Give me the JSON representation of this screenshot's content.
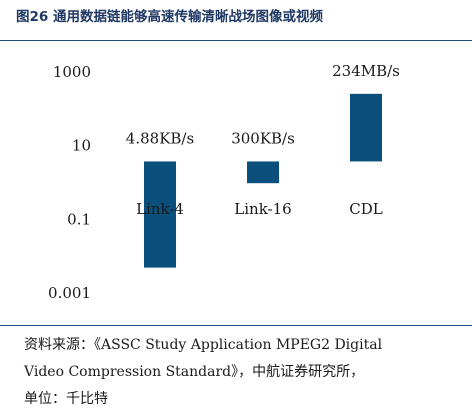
{
  "figure": {
    "title": "图26 通用数据链能够高速传输清晰战场图像或视频",
    "source_line1": "资料来源：《ASSC Study Application MPEG2 Digital",
    "source_line2": "Video Compression Standard》，中航证券研究所，",
    "unit_line": "单位：千比特"
  },
  "colors": {
    "bar": "#0b4f7c",
    "title": "#1f3864",
    "rule": "#1f4e79"
  },
  "chart_data": {
    "type": "bar",
    "title": "",
    "xlabel": "",
    "ylabel": "",
    "yscale": "log",
    "ylim": [
      0.001,
      1000
    ],
    "yticks": [
      {
        "value": 1000,
        "label": "1000"
      },
      {
        "value": 10,
        "label": "10"
      },
      {
        "value": 0.1,
        "label": "0.1"
      },
      {
        "value": 0.001,
        "label": "0.001"
      }
    ],
    "grid": false,
    "bars": [
      {
        "category": "Link-4",
        "bottom": 0.0046,
        "top": 3.5,
        "data_label": "4.88KB/s"
      },
      {
        "category": "Link-16",
        "bottom": 0.9,
        "top": 3.5,
        "data_label": "300KB/s"
      },
      {
        "category": "CDL",
        "bottom": 3.5,
        "top": 240,
        "data_label": "234MB/s"
      }
    ]
  }
}
